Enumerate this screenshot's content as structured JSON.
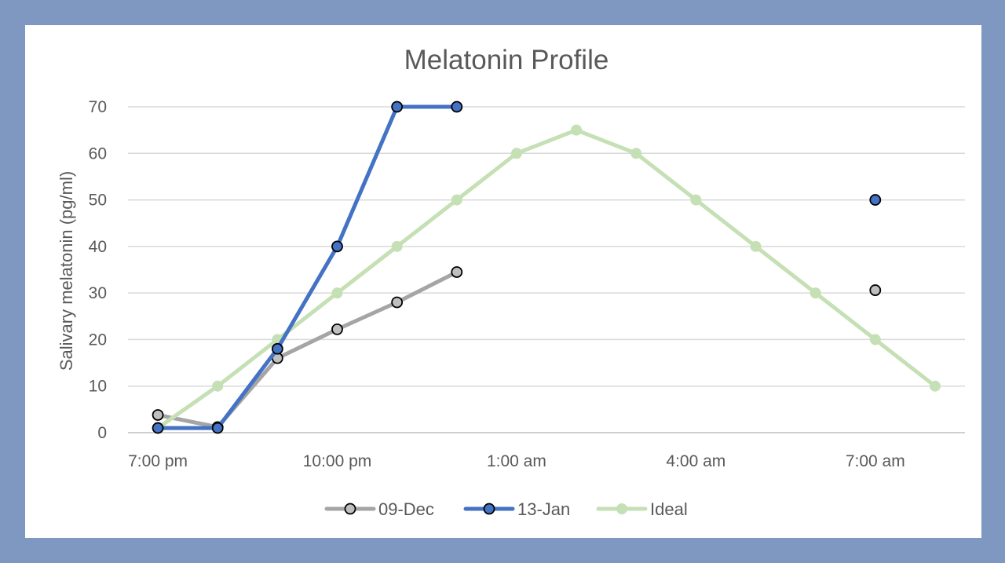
{
  "chart_data": {
    "type": "line",
    "title": "Melatonin Profile",
    "xlabel": "",
    "ylabel": "Salivary melatonin (pg/ml)",
    "ylim": [
      0,
      70
    ],
    "yticks": [
      0,
      10,
      20,
      30,
      40,
      50,
      60,
      70
    ],
    "x": [
      "7:00 pm",
      "8:00 pm",
      "9:00 pm",
      "10:00 pm",
      "11:00 pm",
      "12:00 am",
      "1:00 am",
      "2:00 am",
      "3:00 am",
      "4:00 am",
      "5:00 am",
      "6:00 am",
      "7:00 am",
      "8:00 am"
    ],
    "xtick_labels": [
      {
        "index": 0,
        "label": "7:00 pm"
      },
      {
        "index": 3,
        "label": "10:00 pm"
      },
      {
        "index": 6,
        "label": "1:00 am"
      },
      {
        "index": 9,
        "label": "4:00 am"
      },
      {
        "index": 12,
        "label": "7:00 am"
      }
    ],
    "grid": true,
    "legend_position": "bottom",
    "series": [
      {
        "name": "09-Dec",
        "color": "#a5a5a5",
        "marker_fill": "#bfbfbf",
        "values": [
          3.8,
          1.2,
          16,
          22.2,
          28,
          34.5,
          null,
          null,
          null,
          null,
          null,
          null,
          30.6,
          null
        ]
      },
      {
        "name": "13-Jan",
        "color": "#4472c4",
        "marker_fill": "#4472c4",
        "values": [
          1,
          1,
          18,
          40,
          70,
          70,
          null,
          null,
          null,
          null,
          null,
          null,
          50,
          null
        ]
      },
      {
        "name": "Ideal",
        "color": "#c5e0b4",
        "marker_fill": "#c5e0b4",
        "values": [
          1,
          10,
          20,
          30,
          40,
          50,
          60,
          65,
          60,
          50,
          40,
          30,
          20,
          10
        ]
      }
    ]
  }
}
